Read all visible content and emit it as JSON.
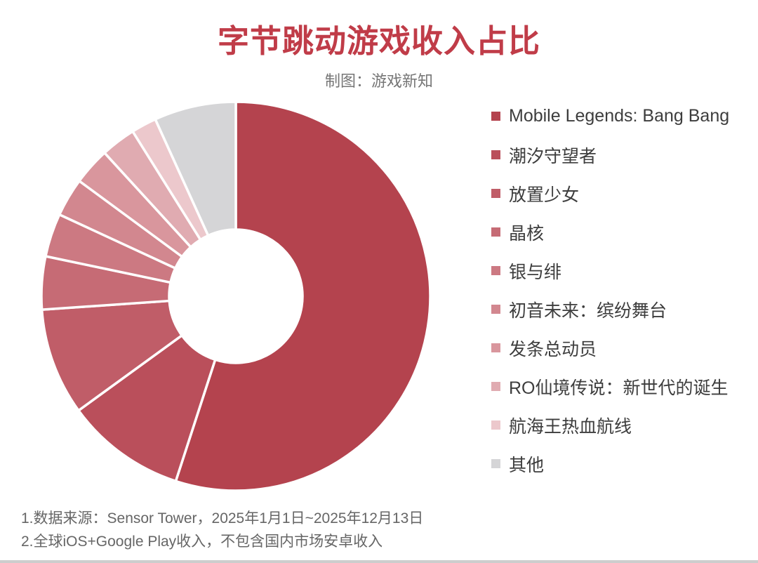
{
  "header": {
    "title": "字节跳动游戏收入占比",
    "subtitle": "制图：游戏新知"
  },
  "chart_data": {
    "type": "pie",
    "title": "字节跳动游戏收入占比",
    "subtitle": "制图：游戏新知",
    "donut": true,
    "start_angle_deg": 0,
    "direction": "clockwise",
    "inner_radius_ratio": 0.34,
    "legend_position": "right",
    "labels_on_slices": false,
    "unit": "percent (estimated from arc angles)",
    "categories": [
      "Mobile Legends: Bang Bang",
      "潮汐守望者",
      "放置少女",
      "晶核",
      "银与绯",
      "初音未来：缤纷舞台",
      "发条总动员",
      "RO仙境传说：新世代的诞生",
      "航海王热血航线",
      "其他"
    ],
    "values": [
      55.0,
      10.0,
      8.9,
      4.4,
      3.6,
      3.2,
      3.1,
      2.9,
      2.1,
      6.8
    ],
    "colors": [
      "#b4434e",
      "#ba4f5b",
      "#c05d68",
      "#c66b75",
      "#cc7982",
      "#d2878f",
      "#d9969d",
      "#e0abb1",
      "#ecc8cc",
      "#d5d5d7"
    ],
    "title_color": "#c03c48",
    "legend_text_color": "#3d3d3d",
    "note_text_color": "#666666",
    "separator_color": "#ffffff"
  },
  "footnotes": {
    "line1": "1.数据来源：Sensor Tower，2025年1月1日~2025年12月13日",
    "line2": "2.全球iOS+Google Play收入，不包含国内市场安卓收入"
  }
}
